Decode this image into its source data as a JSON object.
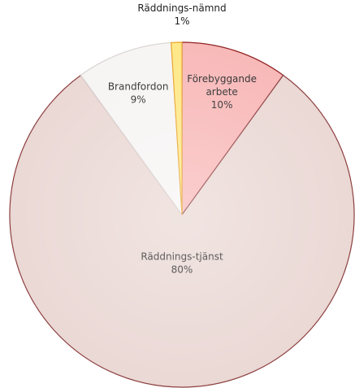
{
  "chart_data": {
    "type": "pie",
    "categories": [
      "Förebyggande arbete",
      "Räddnings-tjänst",
      "Brandfordon",
      "Räddnings-nämnd"
    ],
    "values": [
      10,
      80,
      9,
      1
    ],
    "value_labels": [
      "10%",
      "80%",
      "9%",
      "1%"
    ],
    "colors": [
      "#f8b4b4",
      "#e9d6d2",
      "#f6f4f3",
      "#ffe680"
    ],
    "edge_colors": [
      "#8c1c1c",
      "#8a3a3a",
      "#d8d2d0",
      "#e8a020"
    ]
  }
}
